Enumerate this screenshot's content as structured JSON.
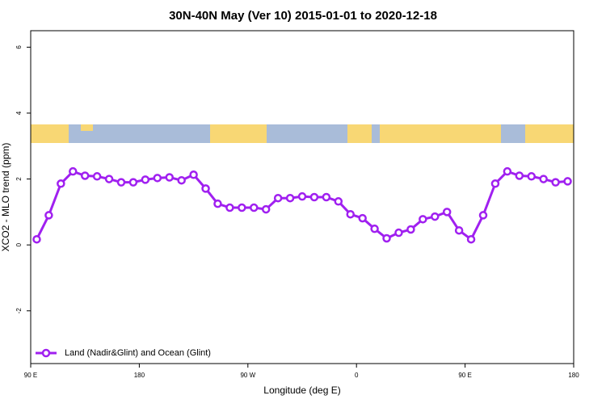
{
  "chart_data": {
    "type": "line",
    "title": "30N-40N May (Ver 10)   2015-01-01 to 2020-12-18",
    "x_label": "Longitude (deg E)",
    "y_label": "XCO2 - MLO trend (ppm)",
    "x": [
      95,
      105,
      115,
      125,
      135,
      145,
      155,
      165,
      175,
      185,
      195,
      205,
      215,
      225,
      235,
      245,
      255,
      265,
      275,
      285,
      295,
      305,
      315,
      325,
      335,
      345,
      355,
      365,
      375,
      385,
      395,
      405,
      415,
      425,
      435,
      445,
      455,
      465,
      475,
      485,
      495,
      505,
      515,
      525,
      535
    ],
    "series": [
      {
        "name": "Land (Nadir&Glint) and Ocean (Glint)",
        "color": "#a020f0",
        "values": [
          0.17,
          0.9,
          1.86,
          2.23,
          2.1,
          2.08,
          2.0,
          1.9,
          1.9,
          1.98,
          2.03,
          2.05,
          1.96,
          2.13,
          1.71,
          1.25,
          1.13,
          1.13,
          1.13,
          1.08,
          1.42,
          1.42,
          1.47,
          1.45,
          1.45,
          1.32,
          0.93,
          0.81,
          0.49,
          0.2,
          0.37,
          0.47,
          0.78,
          0.86,
          1.0,
          0.44,
          0.17,
          0.9,
          1.86,
          2.23,
          2.1,
          2.08,
          2.0,
          1.9,
          1.93
        ]
      }
    ],
    "xlim": [
      90,
      540
    ],
    "xticks": [
      {
        "value": 90,
        "label": "90 E"
      },
      {
        "value": 180,
        "label": "180"
      },
      {
        "value": 270,
        "label": "90 W"
      },
      {
        "value": 360,
        "label": "0"
      },
      {
        "value": 450,
        "label": "90 E"
      },
      {
        "value": 540,
        "label": "180"
      }
    ],
    "ylim": [
      -3.6,
      6.5
    ],
    "yticks": [
      -2,
      0,
      2,
      4,
      6
    ],
    "legend": "bottom-left"
  }
}
